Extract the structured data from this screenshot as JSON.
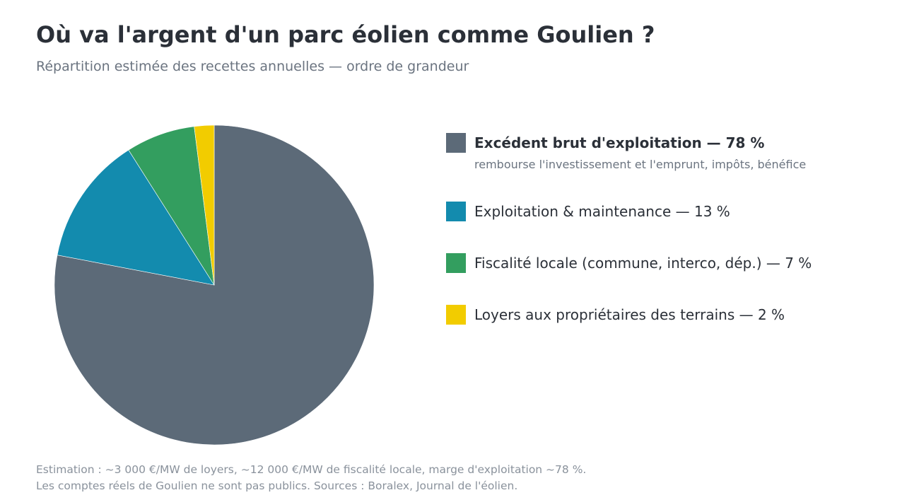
{
  "title": "Où va l'argent d'un parc éolien comme Goulien ?",
  "subtitle": "Répartition estimée des recettes annuelles — ordre de grandeur",
  "chart_data": {
    "type": "pie",
    "title": "Où va l'argent d'un parc éolien comme Goulien ?",
    "subtitle": "Répartition estimée des recettes annuelles — ordre de grandeur",
    "unit": "%",
    "start_angle": "top (12 o'clock), clockwise",
    "legend_position": "right",
    "slices": [
      {
        "label": "Excédent brut d'exploitation — 78 %",
        "note": "rembourse l'investissement et l'emprunt, impôts, bénéfice",
        "value": 78,
        "color": "#5c6a78"
      },
      {
        "label": "Exploitation & maintenance — 13 %",
        "value": 13,
        "color": "#138bae"
      },
      {
        "label": "Fiscalité locale (commune, interco, dép.) — 7 %",
        "value": 7,
        "color": "#339e5f"
      },
      {
        "label": "Loyers aux propriétaires des terrains — 2 %",
        "value": 2,
        "color": "#f2cc00"
      }
    ]
  },
  "footnotes": {
    "line1": "Estimation : ~3 000 €/MW de loyers, ~12 000 €/MW de fiscalité locale, marge d'exploitation ~78 %.",
    "line2": "Les comptes réels de Goulien ne sont pas publics. Sources : Boralex, Journal de l'éolien."
  }
}
